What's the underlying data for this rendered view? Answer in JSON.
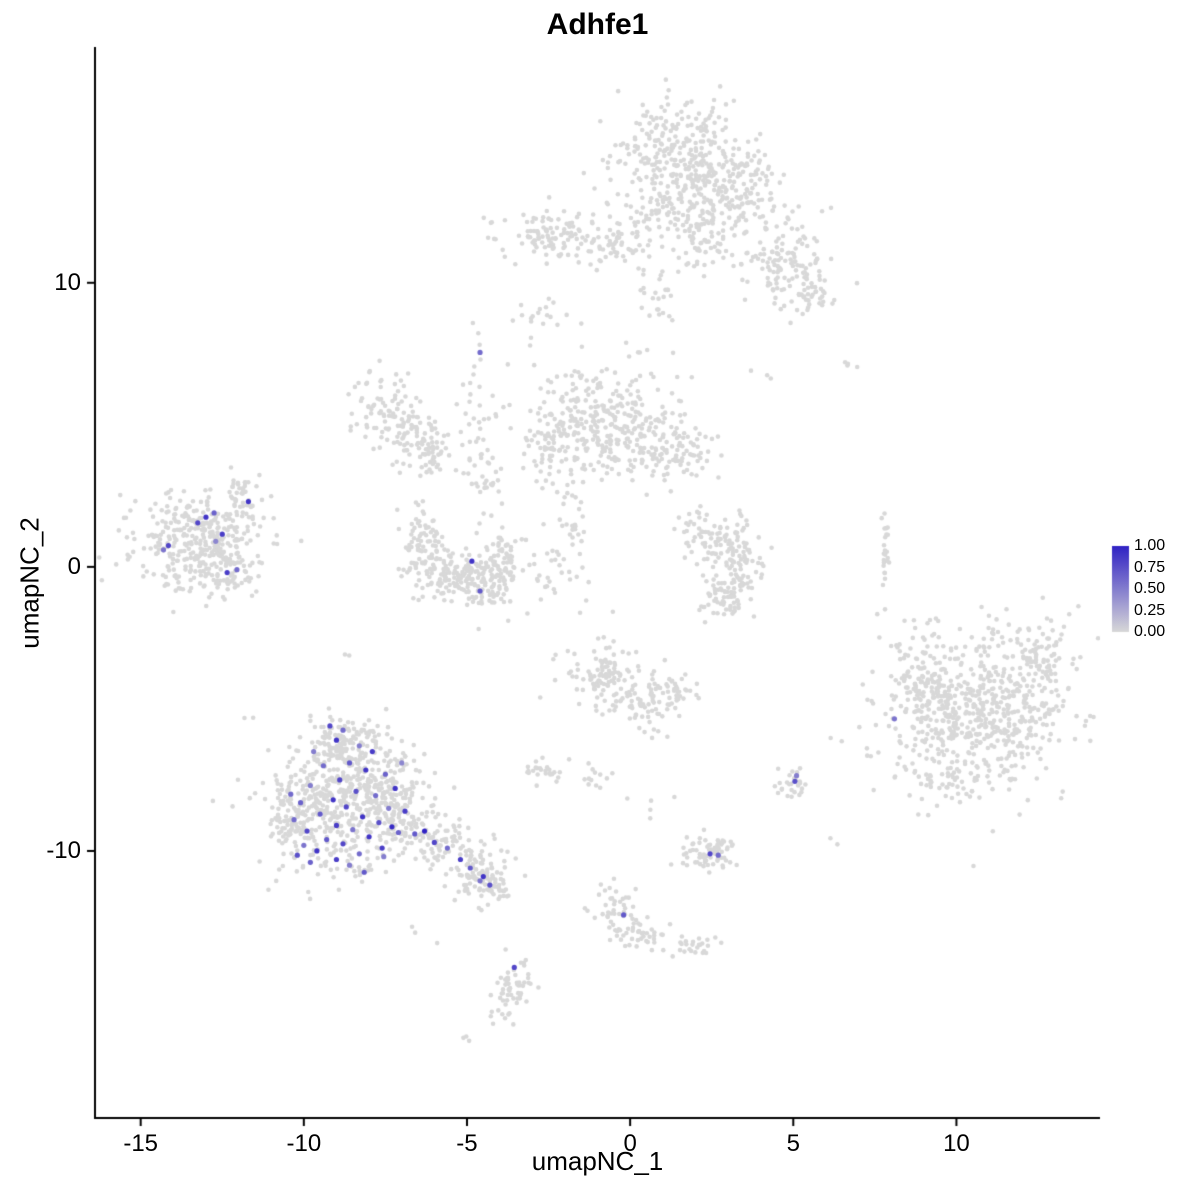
{
  "chart_data": {
    "type": "scatter",
    "title": "Adhfe1",
    "xlabel": "umapNC_1",
    "ylabel": "umapNC_2",
    "x_ticks": [
      "-15",
      "-10",
      "-5",
      "0",
      "5",
      "10"
    ],
    "x_tick_values": [
      -15,
      -10,
      -5,
      0,
      5,
      10
    ],
    "y_ticks": [
      "10",
      "0",
      "-10"
    ],
    "y_tick_values": [
      10,
      0,
      -10
    ],
    "x_domain": [
      -16.4,
      14.4
    ],
    "y_domain": [
      -19.4,
      18.3
    ],
    "grid": "off",
    "seed": 20240501,
    "point_color_low": "#D8D8D8",
    "point_color_high": "#3022C4",
    "axis_color": "#000000",
    "legend": {
      "position": "right",
      "ticks": [
        "1.00",
        "0.75",
        "0.50",
        "0.25",
        "0.00"
      ],
      "values": [
        1.0,
        0.75,
        0.5,
        0.25,
        0.0
      ]
    },
    "background_clusters": [
      {
        "name": "top-main",
        "blobs": [
          {
            "cx": 1.6,
            "cy": 14.4,
            "sx": 1.05,
            "sy": 1.15,
            "n": 340
          },
          {
            "cx": 3.1,
            "cy": 13.0,
            "sx": 0.85,
            "sy": 0.8,
            "n": 150
          },
          {
            "cx": 2.2,
            "cy": 11.6,
            "sx": 0.6,
            "sy": 0.7,
            "n": 70
          },
          {
            "cx": 4.7,
            "cy": 10.6,
            "sx": 0.75,
            "sy": 0.75,
            "n": 110
          },
          {
            "cx": 5.5,
            "cy": 9.6,
            "sx": 0.45,
            "sy": 0.45,
            "n": 40
          },
          {
            "cx": 0.9,
            "cy": 9.6,
            "sx": 0.35,
            "sy": 0.55,
            "n": 25
          }
        ]
      },
      {
        "name": "top-left",
        "blobs": [
          {
            "cx": -2.3,
            "cy": 11.7,
            "sx": 0.95,
            "sy": 0.5,
            "n": 120
          },
          {
            "cx": -0.4,
            "cy": 11.4,
            "sx": 0.45,
            "sy": 0.4,
            "n": 45
          },
          {
            "cx": 0.5,
            "cy": 12.3,
            "sx": 0.3,
            "sy": 0.3,
            "n": 20
          }
        ]
      },
      {
        "name": "mid-left-arm",
        "blobs": [
          {
            "cx": -7.5,
            "cy": 5.6,
            "sx": 0.5,
            "sy": 0.65,
            "n": 70
          },
          {
            "cx": -6.7,
            "cy": 4.6,
            "sx": 0.5,
            "sy": 0.55,
            "n": 70
          },
          {
            "cx": -6.1,
            "cy": 3.9,
            "sx": 0.35,
            "sy": 0.4,
            "n": 35
          }
        ]
      },
      {
        "name": "mid-center",
        "blobs": [
          {
            "cx": -0.9,
            "cy": 5.2,
            "sx": 1.15,
            "sy": 0.95,
            "n": 280
          },
          {
            "cx": 0.6,
            "cy": 4.4,
            "sx": 0.6,
            "sy": 0.6,
            "n": 80
          },
          {
            "cx": 1.7,
            "cy": 3.9,
            "sx": 0.45,
            "sy": 0.45,
            "n": 40
          },
          {
            "cx": -2.3,
            "cy": 4.2,
            "sx": 0.5,
            "sy": 0.6,
            "n": 60
          }
        ]
      },
      {
        "name": "mid-crescent",
        "blobs": [
          {
            "cx": -6.3,
            "cy": 0.9,
            "sx": 0.35,
            "sy": 0.65,
            "n": 70
          },
          {
            "cx": -5.5,
            "cy": -0.3,
            "sx": 0.6,
            "sy": 0.45,
            "n": 130
          },
          {
            "cx": -4.4,
            "cy": -0.6,
            "sx": 0.45,
            "sy": 0.45,
            "n": 90
          },
          {
            "cx": -3.9,
            "cy": 0.4,
            "sx": 0.3,
            "sy": 0.55,
            "n": 50
          }
        ]
      },
      {
        "name": "mid-bridge",
        "blobs": [
          {
            "cx": -4.7,
            "cy": 5.2,
            "sx": 0.3,
            "sy": 1.4,
            "n": 35
          },
          {
            "cx": -4.4,
            "cy": 2.6,
            "sx": 0.35,
            "sy": 0.8,
            "n": 25
          },
          {
            "cx": -2.7,
            "cy": 8.7,
            "sx": 0.5,
            "sy": 0.4,
            "n": 12
          },
          {
            "cx": -1.7,
            "cy": 1.6,
            "sx": 0.2,
            "sy": 1.0,
            "n": 30
          },
          {
            "cx": -2.5,
            "cy": -0.3,
            "sx": 0.4,
            "sy": 0.5,
            "n": 25
          }
        ]
      },
      {
        "name": "left",
        "blobs": [
          {
            "cx": -13.2,
            "cy": 0.9,
            "sx": 1.05,
            "sy": 0.85,
            "n": 360
          },
          {
            "cx": -11.8,
            "cy": 2.4,
            "sx": 0.3,
            "sy": 0.45,
            "n": 45
          },
          {
            "cx": -12.3,
            "cy": -0.3,
            "sx": 0.4,
            "sy": 0.35,
            "n": 40
          }
        ]
      },
      {
        "name": "right-crescent",
        "blobs": [
          {
            "cx": 2.4,
            "cy": 1.2,
            "sx": 0.5,
            "sy": 0.45,
            "n": 60
          },
          {
            "cx": 3.2,
            "cy": 0.2,
            "sx": 0.5,
            "sy": 0.6,
            "n": 90
          },
          {
            "cx": 2.8,
            "cy": -1.0,
            "sx": 0.5,
            "sy": 0.4,
            "n": 60
          }
        ]
      },
      {
        "name": "right-strip",
        "blobs": [
          {
            "cx": 7.8,
            "cy": 0.5,
            "sx": 0.1,
            "sy": 0.75,
            "n": 25
          },
          {
            "cx": 6.9,
            "cy": 7.2,
            "sx": 0.15,
            "sy": 0.2,
            "n": 4
          }
        ]
      },
      {
        "name": "bottom-left",
        "blobs": [
          {
            "cx": -8.9,
            "cy": -8.3,
            "sx": 1.05,
            "sy": 1.25,
            "n": 480
          },
          {
            "cx": -8.8,
            "cy": -6.2,
            "sx": 0.7,
            "sy": 0.5,
            "n": 120
          },
          {
            "cx": -7.3,
            "cy": -8.3,
            "sx": 0.6,
            "sy": 0.7,
            "n": 150
          },
          {
            "cx": -10.3,
            "cy": -8.9,
            "sx": 0.35,
            "sy": 0.8,
            "n": 60
          },
          {
            "cx": -5.9,
            "cy": -9.7,
            "sx": 0.5,
            "sy": 0.45,
            "n": 80
          },
          {
            "cx": -4.7,
            "cy": -10.7,
            "sx": 0.45,
            "sy": 0.4,
            "n": 80
          },
          {
            "cx": -4.1,
            "cy": -11.3,
            "sx": 0.3,
            "sy": 0.3,
            "n": 40
          }
        ]
      },
      {
        "name": "bottom-center",
        "blobs": [
          {
            "cx": -0.6,
            "cy": -3.9,
            "sx": 0.7,
            "sy": 0.6,
            "n": 120
          },
          {
            "cx": 0.5,
            "cy": -4.9,
            "sx": 0.5,
            "sy": 0.4,
            "n": 60
          },
          {
            "cx": 1.4,
            "cy": -4.3,
            "sx": 0.3,
            "sy": 0.3,
            "n": 25
          },
          {
            "cx": -2.6,
            "cy": -7.2,
            "sx": 0.3,
            "sy": 0.25,
            "n": 25
          },
          {
            "cx": -1.1,
            "cy": -7.4,
            "sx": 0.25,
            "sy": 0.2,
            "n": 12
          }
        ]
      },
      {
        "name": "right-main",
        "blobs": [
          {
            "cx": 10.7,
            "cy": -5.0,
            "sx": 1.55,
            "sy": 1.35,
            "n": 650
          },
          {
            "cx": 9.0,
            "cy": -4.2,
            "sx": 0.5,
            "sy": 0.8,
            "n": 80
          },
          {
            "cx": 9.6,
            "cy": -7.6,
            "sx": 0.5,
            "sy": 0.35,
            "n": 40
          },
          {
            "cx": 12.6,
            "cy": -3.2,
            "sx": 0.4,
            "sy": 0.5,
            "n": 50
          }
        ]
      },
      {
        "name": "small-right",
        "blobs": [
          {
            "cx": 5.0,
            "cy": -7.6,
            "sx": 0.25,
            "sy": 0.3,
            "n": 26
          }
        ]
      },
      {
        "name": "small-bottom",
        "blobs": [
          {
            "cx": 2.4,
            "cy": -10.1,
            "sx": 0.45,
            "sy": 0.3,
            "n": 70
          }
        ]
      },
      {
        "name": "bottom-trail",
        "blobs": [
          {
            "cx": -0.5,
            "cy": -11.9,
            "sx": 0.3,
            "sy": 0.5,
            "n": 40
          },
          {
            "cx": 0.3,
            "cy": -12.9,
            "sx": 0.5,
            "sy": 0.3,
            "n": 40
          },
          {
            "cx": 1.9,
            "cy": -13.3,
            "sx": 0.35,
            "sy": 0.2,
            "n": 25
          }
        ]
      },
      {
        "name": "bottom-small",
        "blobs": [
          {
            "cx": -3.6,
            "cy": -14.9,
            "sx": 0.3,
            "sy": 0.65,
            "n": 60
          },
          {
            "cx": -5.0,
            "cy": -16.6,
            "sx": 0.15,
            "sy": 0.15,
            "n": 3
          }
        ]
      },
      {
        "name": "sparse-singles",
        "blobs": [
          {
            "cx": -8.5,
            "cy": -3.2,
            "sx": 0.15,
            "sy": 0.15,
            "n": 2
          },
          {
            "cx": -2.9,
            "cy": 8.8,
            "sx": 0.8,
            "sy": 0.5,
            "n": 8
          },
          {
            "cx": 0.3,
            "cy": 7.6,
            "sx": 0.4,
            "sy": 0.3,
            "n": 4
          },
          {
            "cx": -1.5,
            "cy": -1.5,
            "sx": 0.5,
            "sy": 0.5,
            "n": 4
          },
          {
            "cx": 4.0,
            "cy": 6.5,
            "sx": 0.3,
            "sy": 0.3,
            "n": 3
          },
          {
            "cx": -6.5,
            "cy": -13.2,
            "sx": 0.3,
            "sy": 0.3,
            "n": 3
          },
          {
            "cx": 0.5,
            "cy": -8.4,
            "sx": 0.3,
            "sy": 0.3,
            "n": 5
          },
          {
            "cx": 6.3,
            "cy": -9.7,
            "sx": 0.2,
            "sy": 0.2,
            "n": 2
          },
          {
            "cx": -11.5,
            "cy": -5.5,
            "sx": 0.2,
            "sy": 0.2,
            "n": 2
          }
        ]
      }
    ],
    "expressing_points": [
      [
        -13.0,
        1.75,
        0.9
      ],
      [
        -12.75,
        1.9,
        0.65
      ],
      [
        -13.25,
        1.55,
        0.8
      ],
      [
        -12.5,
        1.15,
        0.85
      ],
      [
        -14.15,
        0.75,
        0.8
      ],
      [
        -14.3,
        0.6,
        0.55
      ],
      [
        -11.7,
        2.3,
        0.9
      ],
      [
        -12.35,
        -0.2,
        0.85
      ],
      [
        -12.05,
        -0.1,
        0.6
      ],
      [
        -12.7,
        0.9,
        0.45
      ],
      [
        -4.6,
        7.55,
        0.6
      ],
      [
        -4.85,
        0.2,
        0.9
      ],
      [
        -4.6,
        -0.85,
        0.7
      ],
      [
        -9.2,
        -5.6,
        0.8
      ],
      [
        -8.8,
        -5.75,
        0.6
      ],
      [
        -9.0,
        -6.1,
        0.9
      ],
      [
        -8.3,
        -6.3,
        0.5
      ],
      [
        -7.9,
        -6.5,
        0.85
      ],
      [
        -8.6,
        -6.9,
        0.7
      ],
      [
        -9.4,
        -7.0,
        0.6
      ],
      [
        -8.1,
        -7.15,
        0.9
      ],
      [
        -7.5,
        -7.3,
        0.65
      ],
      [
        -8.9,
        -7.5,
        0.8
      ],
      [
        -9.8,
        -7.7,
        0.5
      ],
      [
        -7.2,
        -7.8,
        0.9
      ],
      [
        -8.4,
        -7.9,
        0.75
      ],
      [
        -7.8,
        -8.05,
        0.6
      ],
      [
        -9.1,
        -8.2,
        0.9
      ],
      [
        -10.1,
        -8.3,
        0.65
      ],
      [
        -8.7,
        -8.45,
        0.8
      ],
      [
        -7.4,
        -8.5,
        0.5
      ],
      [
        -6.9,
        -8.6,
        0.85
      ],
      [
        -9.5,
        -8.7,
        0.7
      ],
      [
        -8.2,
        -8.8,
        0.9
      ],
      [
        -10.3,
        -8.9,
        0.6
      ],
      [
        -7.7,
        -9.0,
        0.75
      ],
      [
        -9.0,
        -9.1,
        0.85
      ],
      [
        -8.5,
        -9.25,
        0.55
      ],
      [
        -9.9,
        -9.3,
        0.8
      ],
      [
        -7.1,
        -9.35,
        0.65
      ],
      [
        -8.0,
        -9.5,
        0.9
      ],
      [
        -9.3,
        -9.6,
        0.7
      ],
      [
        -8.8,
        -9.75,
        0.8
      ],
      [
        -10.0,
        -9.8,
        0.55
      ],
      [
        -7.6,
        -9.9,
        0.85
      ],
      [
        -9.6,
        -10.0,
        0.9
      ],
      [
        -8.3,
        -10.1,
        0.6
      ],
      [
        -10.2,
        -10.15,
        0.75
      ],
      [
        -9.0,
        -10.3,
        0.85
      ],
      [
        -9.8,
        -10.4,
        0.65
      ],
      [
        -8.6,
        -10.5,
        0.5
      ],
      [
        -7.3,
        -9.15,
        0.95
      ],
      [
        -6.6,
        -9.4,
        0.7
      ],
      [
        -6.3,
        -9.3,
        1.0
      ],
      [
        -6.0,
        -9.7,
        0.8
      ],
      [
        -5.6,
        -9.9,
        0.6
      ],
      [
        -5.2,
        -10.3,
        0.85
      ],
      [
        -4.9,
        -10.6,
        0.7
      ],
      [
        -4.5,
        -10.9,
        0.9
      ],
      [
        -4.3,
        -11.2,
        0.75
      ],
      [
        -4.6,
        -11.05,
        0.55
      ],
      [
        -7.0,
        -6.9,
        0.45
      ],
      [
        -9.7,
        -6.5,
        0.5
      ],
      [
        -10.4,
        -8.0,
        0.6
      ],
      [
        -8.15,
        -10.75,
        0.7
      ],
      [
        -7.55,
        -10.2,
        0.5
      ],
      [
        5.05,
        -7.55,
        0.75
      ],
      [
        5.1,
        -7.35,
        0.5
      ],
      [
        2.45,
        -10.1,
        0.8
      ],
      [
        2.7,
        -10.15,
        0.6
      ],
      [
        -0.2,
        -12.25,
        0.7
      ],
      [
        -3.55,
        -14.1,
        0.8
      ],
      [
        8.1,
        -5.35,
        0.55
      ]
    ]
  }
}
